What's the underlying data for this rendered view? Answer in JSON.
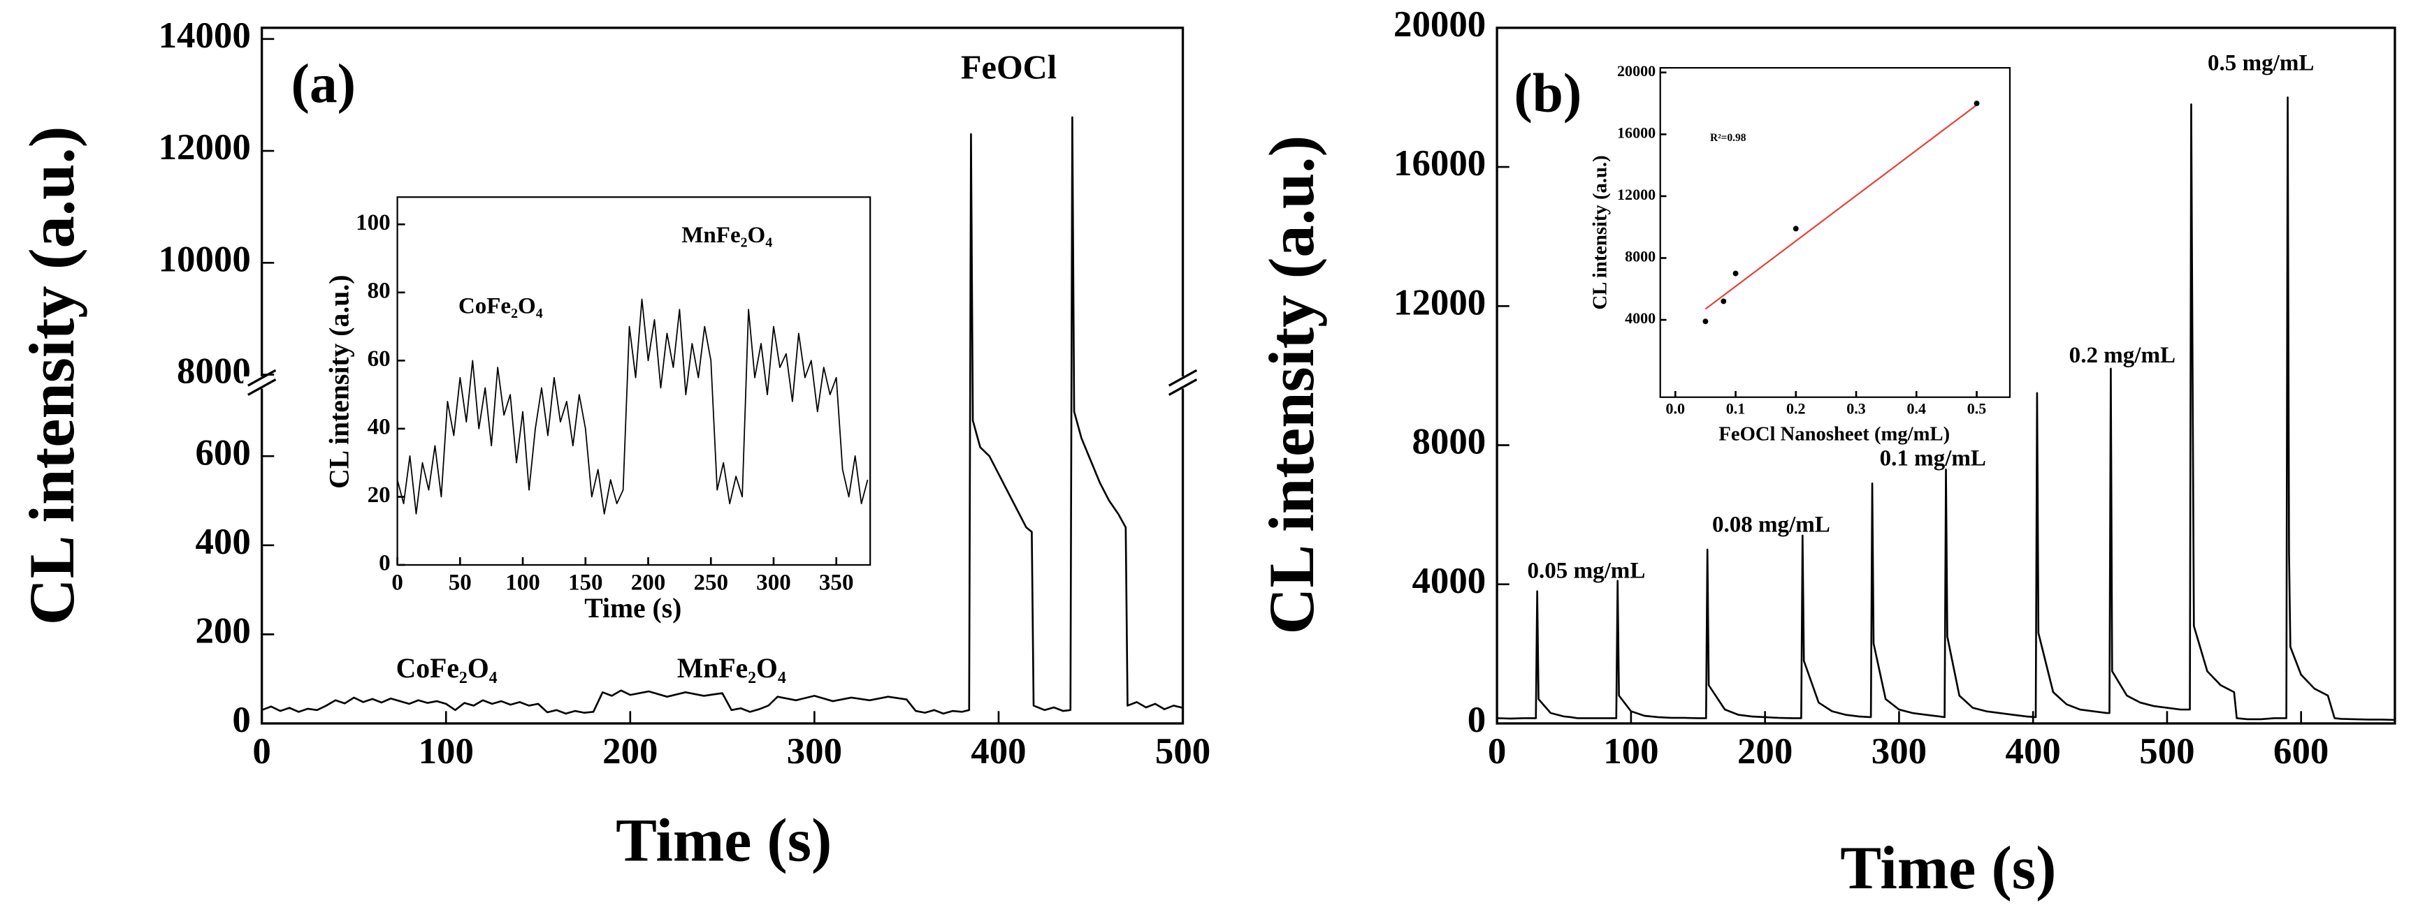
{
  "chart_data": [
    {
      "type": "line",
      "xlabel": "Time (s)",
      "ylabel": "CL intensity (a.u.)",
      "color": "#000000",
      "xlim": [
        0,
        500
      ],
      "xticks": [
        0,
        100,
        200,
        300,
        400,
        500
      ],
      "ylim": [
        0,
        14200
      ],
      "ybreak": [
        760,
        7900
      ],
      "yticks": [
        0,
        200,
        400,
        600,
        8000,
        10000,
        12000,
        14000
      ],
      "annotations": [
        "(a)",
        "FeOCl",
        "CoFe₂O₄",
        "MnFe₂O₄"
      ],
      "x": [
        0,
        5,
        10,
        15,
        20,
        25,
        30,
        35,
        40,
        45,
        50,
        55,
        60,
        65,
        70,
        75,
        80,
        85,
        90,
        95,
        100,
        105,
        110,
        115,
        120,
        125,
        130,
        135,
        140,
        145,
        150,
        155,
        160,
        165,
        170,
        175,
        180,
        185,
        190,
        195,
        200,
        210,
        220,
        230,
        240,
        250,
        255,
        260,
        265,
        270,
        275,
        280,
        290,
        300,
        310,
        320,
        330,
        340,
        350,
        355,
        360,
        365,
        370,
        375,
        380,
        384,
        385,
        386,
        390,
        395,
        400,
        405,
        410,
        415,
        418,
        419,
        425,
        430,
        435,
        439,
        440,
        441,
        445,
        450,
        455,
        460,
        465,
        469,
        470,
        475,
        480,
        485,
        490,
        495,
        500
      ],
      "values": [
        30,
        38,
        28,
        35,
        26,
        33,
        30,
        40,
        52,
        45,
        58,
        48,
        55,
        47,
        56,
        50,
        44,
        52,
        46,
        50,
        44,
        30,
        46,
        40,
        52,
        44,
        50,
        42,
        48,
        40,
        44,
        25,
        30,
        22,
        28,
        24,
        26,
        70,
        62,
        74,
        64,
        72,
        60,
        70,
        62,
        68,
        30,
        34,
        26,
        32,
        40,
        60,
        52,
        62,
        50,
        58,
        52,
        60,
        54,
        28,
        24,
        30,
        22,
        28,
        26,
        30,
        12300,
        680,
        620,
        600,
        560,
        520,
        480,
        440,
        430,
        40,
        30,
        36,
        28,
        30,
        12600,
        700,
        640,
        590,
        540,
        500,
        470,
        440,
        40,
        48,
        36,
        44,
        32,
        40,
        35
      ]
    },
    {
      "type": "line",
      "xlabel": "Time (s)",
      "ylabel": "CL intensity (a.u.)",
      "color": "#000000",
      "xlim": [
        0,
        377
      ],
      "xticks": [
        0,
        50,
        100,
        150,
        200,
        250,
        300,
        350
      ],
      "ylim": [
        0,
        108
      ],
      "yticks": [
        0,
        20,
        40,
        60,
        80,
        100
      ],
      "annotations": [
        "CoFe₂O₄",
        "MnFe₂O₄"
      ],
      "x": [
        0,
        5,
        10,
        15,
        20,
        25,
        30,
        35,
        40,
        45,
        50,
        55,
        60,
        65,
        70,
        75,
        80,
        85,
        90,
        95,
        100,
        105,
        110,
        115,
        120,
        125,
        130,
        135,
        140,
        145,
        150,
        155,
        160,
        165,
        170,
        175,
        180,
        185,
        190,
        195,
        200,
        205,
        210,
        215,
        220,
        225,
        230,
        235,
        240,
        245,
        250,
        255,
        260,
        265,
        270,
        275,
        280,
        285,
        290,
        295,
        300,
        305,
        310,
        315,
        320,
        325,
        330,
        335,
        340,
        345,
        350,
        355,
        360,
        365,
        370,
        375
      ],
      "values": [
        25,
        18,
        32,
        15,
        30,
        22,
        35,
        20,
        48,
        38,
        55,
        42,
        60,
        40,
        52,
        35,
        58,
        44,
        50,
        30,
        45,
        22,
        40,
        52,
        38,
        55,
        42,
        48,
        35,
        50,
        40,
        20,
        28,
        15,
        25,
        18,
        22,
        70,
        55,
        78,
        60,
        72,
        52,
        68,
        58,
        75,
        50,
        65,
        55,
        70,
        60,
        22,
        30,
        18,
        26,
        20,
        75,
        55,
        65,
        50,
        70,
        58,
        62,
        48,
        68,
        55,
        60,
        45,
        58,
        50,
        55,
        28,
        20,
        32,
        18,
        25
      ]
    },
    {
      "type": "line",
      "xlabel": "Time (s)",
      "ylabel": "CL intensity (a.u.)",
      "color": "#000000",
      "xlim": [
        0,
        670
      ],
      "xticks": [
        0,
        100,
        200,
        300,
        400,
        500,
        600
      ],
      "ylim": [
        0,
        20000
      ],
      "yticks": [
        0,
        4000,
        8000,
        12000,
        16000,
        20000
      ],
      "annotations": [
        "(b)",
        "0.05 mg/mL",
        "0.08 mg/mL",
        "0.1 mg/mL",
        "0.2 mg/mL",
        "0.5 mg/mL"
      ],
      "x": [
        0,
        10,
        20,
        29,
        30,
        31,
        40,
        50,
        55,
        60,
        70,
        80,
        89,
        90,
        91,
        100,
        110,
        120,
        130,
        140,
        150,
        156,
        157,
        158,
        170,
        180,
        190,
        200,
        210,
        220,
        227,
        228,
        229,
        240,
        250,
        260,
        270,
        279,
        280,
        281,
        290,
        300,
        310,
        320,
        330,
        334,
        335,
        336,
        345,
        355,
        365,
        375,
        385,
        395,
        402,
        403,
        404,
        415,
        425,
        435,
        445,
        455,
        457,
        458,
        459,
        470,
        480,
        490,
        500,
        510,
        517,
        518,
        519,
        520,
        530,
        540,
        550,
        552,
        560,
        570,
        580,
        589,
        590,
        591,
        592,
        600,
        610,
        620,
        625,
        630,
        640,
        650,
        660,
        670
      ],
      "values": [
        150,
        140,
        150,
        150,
        3800,
        700,
        300,
        200,
        180,
        150,
        150,
        150,
        150,
        4100,
        800,
        350,
        220,
        180,
        160,
        160,
        150,
        150,
        5000,
        1100,
        400,
        250,
        200,
        180,
        160,
        150,
        150,
        5400,
        1800,
        600,
        350,
        250,
        200,
        180,
        6900,
        2300,
        700,
        400,
        300,
        250,
        200,
        180,
        7300,
        2500,
        800,
        450,
        350,
        300,
        250,
        200,
        180,
        9500,
        2600,
        900,
        550,
        400,
        350,
        300,
        300,
        10200,
        1500,
        800,
        600,
        500,
        450,
        400,
        400,
        17800,
        10300,
        2800,
        1500,
        1100,
        900,
        150,
        120,
        120,
        150,
        150,
        18000,
        4900,
        2200,
        1400,
        1000,
        800,
        150,
        130,
        120,
        110,
        110,
        100
      ]
    },
    {
      "type": "scatter",
      "xlabel": "FeOCl Nanosheet (mg/mL)",
      "ylabel": "CL intensity (a.u.)",
      "color": "#000000",
      "xlim": [
        -0.025,
        0.555
      ],
      "xticks": [
        {
          "value": 0,
          "label": "0.0"
        },
        0.1,
        0.2,
        0.3,
        0.4,
        0.5
      ],
      "ylim": [
        -1000,
        20300
      ],
      "yticks": [
        4000,
        8000,
        12000,
        16000,
        20000
      ],
      "annotations": [
        "R²=0.98"
      ],
      "x": [
        0.05,
        0.08,
        0.1,
        0.2,
        0.5
      ],
      "values": [
        3900,
        5200,
        7000,
        9900,
        18000
      ],
      "fit": {
        "color": "#e8403a",
        "x": [
          0.05,
          0.5
        ],
        "values": [
          4700,
          17900
        ]
      }
    }
  ]
}
